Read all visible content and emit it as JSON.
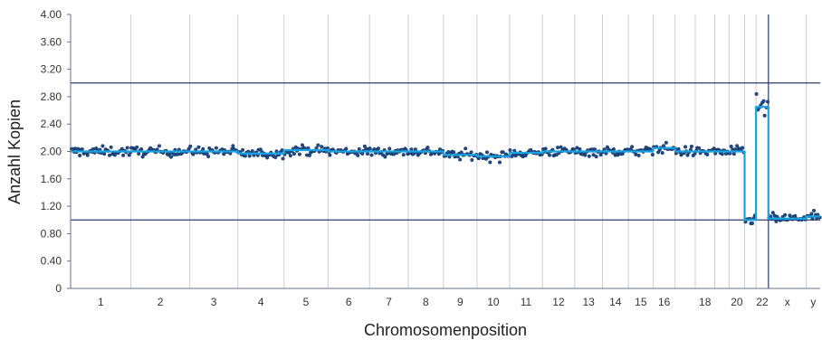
{
  "chart_data": {
    "type": "scatter",
    "xlabel": "Chromosomenposition",
    "ylabel": "Anzahl Kopien",
    "ylim": [
      0,
      4.0
    ],
    "yticks": [
      "0",
      "0.40",
      "0.80",
      "1.20",
      "1.60",
      "2.00",
      "2.40",
      "2.80",
      "3.20",
      "3.60",
      "4.00"
    ],
    "reference_lines": [
      1.0,
      3.0
    ],
    "grid": "vertical chromosome separators",
    "chromosomes": [
      {
        "label": "1",
        "size": 248,
        "copies": 2.0
      },
      {
        "label": "2",
        "size": 242,
        "copies": 2.0
      },
      {
        "label": "3",
        "size": 198,
        "copies": 2.0
      },
      {
        "label": "4",
        "size": 190,
        "copies": 1.97
      },
      {
        "label": "5",
        "size": 181,
        "copies": 2.02
      },
      {
        "label": "6",
        "size": 171,
        "copies": 2.0
      },
      {
        "label": "7",
        "size": 159,
        "copies": 2.0
      },
      {
        "label": "8",
        "size": 145,
        "copies": 2.0
      },
      {
        "label": "9",
        "size": 138,
        "copies": 1.95
      },
      {
        "label": "10",
        "size": 134,
        "copies": 1.93
      },
      {
        "label": "11",
        "size": 135,
        "copies": 1.98
      },
      {
        "label": "12",
        "size": 133,
        "copies": 2.0
      },
      {
        "label": "13",
        "size": 114,
        "copies": 2.0
      },
      {
        "label": "14",
        "size": 107,
        "copies": 2.0
      },
      {
        "label": "15",
        "size": 102,
        "copies": 2.0
      },
      {
        "label": "16",
        "size": 90,
        "copies": 2.05
      },
      {
        "label": "",
        "size": 83,
        "copies": 2.0
      },
      {
        "label": "18",
        "size": 80,
        "copies": 2.0
      },
      {
        "label": "",
        "size": 59,
        "copies": 2.0
      },
      {
        "label": "20",
        "size": 64,
        "copies": 2.0
      },
      {
        "label": "",
        "size": 47,
        "copies": 1.0
      },
      {
        "label": "22",
        "size": 51,
        "copies": 2.65
      },
      {
        "label": "x",
        "size": 156,
        "copies": 1.02
      },
      {
        "label": "y",
        "size": 57,
        "copies": 1.05
      }
    ],
    "colors": {
      "points": "#1f4e8c",
      "point_outline": "#0d2a55",
      "fit_line": "#1aa3e0",
      "reference_line": "#2c3e66",
      "separator": "#c9ced6",
      "axis": "#6b7280"
    }
  }
}
